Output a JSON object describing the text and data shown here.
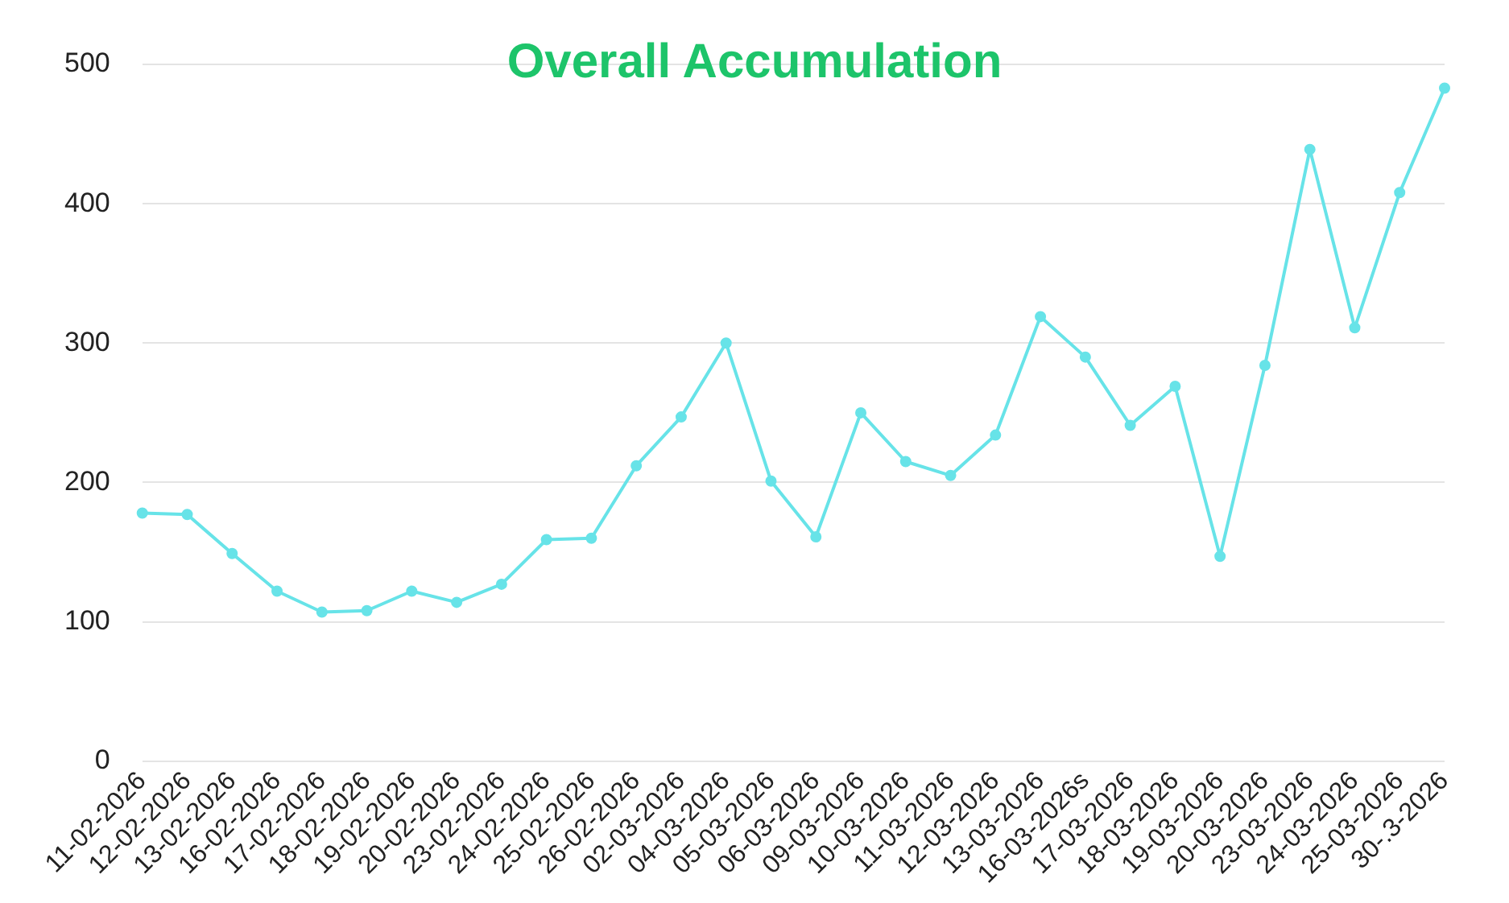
{
  "chart_data": {
    "type": "line",
    "title": "Overall Accumulation",
    "categories": [
      "11-02-2026",
      "12-02-2026",
      "13-02-2026",
      "16-02-2026",
      "17-02-2026",
      "18-02-2026",
      "19-02-2026",
      "20-02-2026",
      "23-02-2026",
      "24-02-2026",
      "25-02-2026",
      "26-02-2026",
      "02-03-2026",
      "04-03-2026",
      "05-03-2026",
      "06-03-2026",
      "09-03-2026",
      "10-03-2026",
      "11-03-2026",
      "12-03-2026",
      "13-03-2026",
      "16-03-2026s",
      "17-03-2026",
      "18-03-2026",
      "19-03-2026",
      "20-03-2026",
      "23-03-2026",
      "24-03-2026",
      "25-03-2026",
      "30-.3-2026"
    ],
    "series": [
      {
        "color": "#67e3e8",
        "values": [
          178,
          177,
          149,
          122,
          107,
          108,
          122,
          114,
          127,
          159,
          160,
          212,
          247,
          300,
          201,
          161,
          250,
          215,
          205,
          234,
          319,
          290,
          241,
          269,
          147,
          284,
          439,
          311,
          408,
          483
        ]
      }
    ],
    "ylim": [
      0,
      500
    ],
    "yticks": [
      0,
      100,
      200,
      300,
      400,
      500
    ],
    "grid": "y",
    "legend": false,
    "marker": "circle",
    "line_style": "solid"
  }
}
